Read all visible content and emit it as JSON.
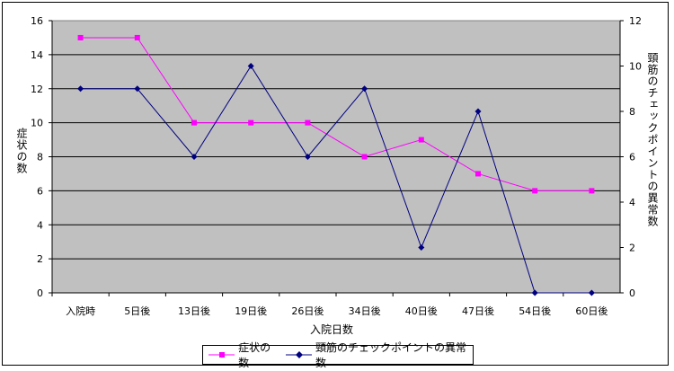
{
  "chart_data": {
    "type": "line",
    "categories": [
      "入院時",
      "5日後",
      "13日後",
      "19日後",
      "26日後",
      "34日後",
      "40日後",
      "47日後",
      "54日後",
      "60日後"
    ],
    "xlabel": "入院日数",
    "ylabel": "症状の数",
    "y2label": "頸筋のチェックポイントの異常数",
    "ylim": [
      0,
      16
    ],
    "yticks": [
      0,
      2,
      4,
      6,
      8,
      10,
      12,
      14,
      16
    ],
    "y2lim": [
      0,
      12
    ],
    "y2ticks": [
      0,
      2,
      4,
      6,
      8,
      10,
      12
    ],
    "grid": true,
    "plot_background": "#C0C0C0",
    "legend_position": "bottom",
    "series": [
      {
        "name": "症状の数",
        "axis": "left",
        "color": "#FF00FF",
        "marker": "square",
        "values": [
          15,
          15,
          10,
          10,
          10,
          8,
          9,
          7,
          6,
          6
        ]
      },
      {
        "name": "頸筋のチェックポイントの異常数",
        "axis": "right",
        "color": "#000080",
        "marker": "diamond",
        "values": [
          9,
          9,
          6,
          10,
          6,
          9,
          2,
          8,
          0,
          0
        ]
      }
    ]
  }
}
